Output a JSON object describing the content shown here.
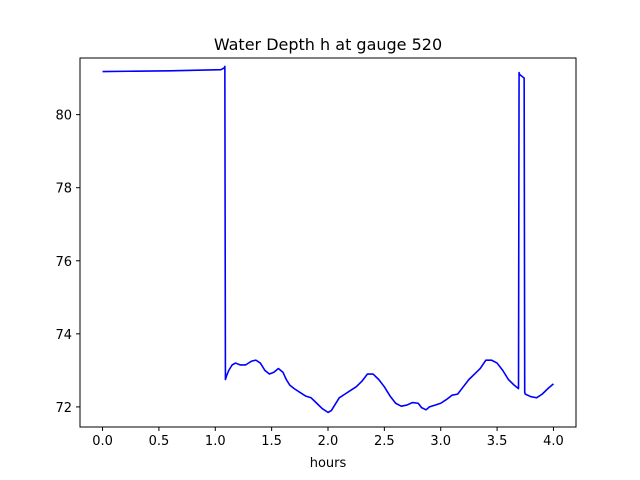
{
  "chart_data": {
    "type": "line",
    "title": "Water Depth h at gauge 520",
    "xlabel": "hours",
    "ylabel": "",
    "xlim": [
      -0.2,
      4.2
    ],
    "ylim": [
      71.45,
      81.55
    ],
    "x_ticks": [
      0.0,
      0.5,
      1.0,
      1.5,
      2.0,
      2.5,
      3.0,
      3.5,
      4.0
    ],
    "x_tick_labels": [
      "0.0",
      "0.5",
      "1.0",
      "1.5",
      "2.0",
      "2.5",
      "3.0",
      "3.5",
      "4.0"
    ],
    "y_ticks": [
      72,
      74,
      76,
      78,
      80
    ],
    "y_tick_labels": [
      "72",
      "74",
      "76",
      "78",
      "80"
    ],
    "grid": false,
    "legend": "none",
    "series": [
      {
        "color": "#0000ff",
        "x": [
          0.0,
          0.3,
          0.6,
          0.9,
          1.05,
          1.08,
          1.085,
          1.09,
          1.1,
          1.12,
          1.15,
          1.18,
          1.22,
          1.27,
          1.32,
          1.36,
          1.4,
          1.44,
          1.48,
          1.52,
          1.56,
          1.6,
          1.63,
          1.66,
          1.7,
          1.75,
          1.8,
          1.85,
          1.9,
          1.95,
          2.0,
          2.03,
          2.06,
          2.1,
          2.15,
          2.2,
          2.25,
          2.3,
          2.35,
          2.4,
          2.45,
          2.5,
          2.55,
          2.6,
          2.65,
          2.7,
          2.75,
          2.8,
          2.83,
          2.87,
          2.9,
          2.95,
          3.0,
          3.05,
          3.1,
          3.15,
          3.2,
          3.25,
          3.3,
          3.35,
          3.4,
          3.45,
          3.5,
          3.55,
          3.6,
          3.65,
          3.69,
          3.695,
          3.7,
          3.74,
          3.745,
          3.75,
          3.8,
          3.85,
          3.9,
          3.95,
          4.0
        ],
        "y": [
          81.18,
          81.19,
          81.2,
          81.22,
          81.23,
          81.28,
          81.32,
          72.75,
          72.85,
          73.0,
          73.15,
          73.2,
          73.15,
          73.15,
          73.25,
          73.28,
          73.2,
          73.0,
          72.9,
          72.95,
          73.05,
          72.95,
          72.75,
          72.6,
          72.5,
          72.4,
          72.3,
          72.25,
          72.1,
          71.95,
          71.85,
          71.9,
          72.05,
          72.25,
          72.35,
          72.45,
          72.55,
          72.7,
          72.9,
          72.9,
          72.75,
          72.55,
          72.3,
          72.1,
          72.02,
          72.05,
          72.12,
          72.1,
          71.98,
          71.92,
          72.0,
          72.05,
          72.1,
          72.2,
          72.32,
          72.35,
          72.55,
          72.75,
          72.9,
          73.05,
          73.28,
          73.28,
          73.2,
          73.0,
          72.75,
          72.6,
          72.5,
          81.15,
          81.1,
          81.0,
          72.4,
          72.35,
          72.28,
          72.25,
          72.35,
          72.5,
          72.63
        ]
      }
    ]
  }
}
